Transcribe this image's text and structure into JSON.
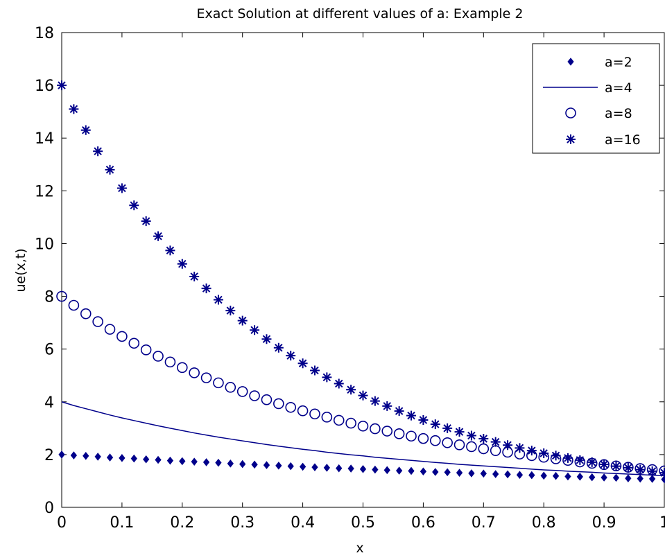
{
  "chart_data": {
    "type": "scatter",
    "title": "Exact Solution at different values of a: Example 2",
    "xlabel": "x",
    "ylabel": "ue(x,t)",
    "xlim": [
      0,
      1
    ],
    "ylim": [
      0,
      18
    ],
    "xticks": [
      "0",
      "0.1",
      "0.2",
      "0.3",
      "0.4",
      "0.5",
      "0.6",
      "0.7",
      "0.8",
      "0.9",
      "1"
    ],
    "yticks": [
      "0",
      "2",
      "4",
      "6",
      "8",
      "10",
      "12",
      "14",
      "16",
      "18"
    ],
    "grid": false,
    "legend_position": "top-right",
    "color": "#00008b",
    "x": [
      0,
      0.02,
      0.04,
      0.06,
      0.08,
      0.1,
      0.12,
      0.14,
      0.16,
      0.18,
      0.2,
      0.22,
      0.24,
      0.26,
      0.28,
      0.3,
      0.32,
      0.34,
      0.36,
      0.38,
      0.4,
      0.42,
      0.44,
      0.46,
      0.48,
      0.5,
      0.52,
      0.54,
      0.56,
      0.58,
      0.6,
      0.62,
      0.64,
      0.66,
      0.68,
      0.7,
      0.72,
      0.74,
      0.76,
      0.78,
      0.8,
      0.82,
      0.84,
      0.86,
      0.88,
      0.9,
      0.92,
      0.94,
      0.96,
      0.98,
      1
    ],
    "series": [
      {
        "name": "a=2",
        "marker": "dot",
        "values": [
          2.0,
          1.97,
          1.95,
          1.92,
          1.89,
          1.87,
          1.85,
          1.82,
          1.8,
          1.77,
          1.75,
          1.73,
          1.71,
          1.69,
          1.66,
          1.64,
          1.62,
          1.6,
          1.58,
          1.56,
          1.54,
          1.52,
          1.5,
          1.48,
          1.47,
          1.45,
          1.43,
          1.41,
          1.39,
          1.38,
          1.36,
          1.34,
          1.33,
          1.31,
          1.29,
          1.28,
          1.26,
          1.25,
          1.23,
          1.22,
          1.2,
          1.19,
          1.17,
          1.16,
          1.14,
          1.13,
          1.12,
          1.1,
          1.09,
          1.08,
          1.06
        ]
      },
      {
        "name": "a=4",
        "marker": "line",
        "values": [
          4.0,
          3.86,
          3.74,
          3.62,
          3.5,
          3.39,
          3.29,
          3.19,
          3.09,
          3.0,
          2.91,
          2.82,
          2.74,
          2.66,
          2.59,
          2.52,
          2.45,
          2.38,
          2.32,
          2.26,
          2.2,
          2.15,
          2.09,
          2.04,
          1.99,
          1.95,
          1.9,
          1.86,
          1.82,
          1.78,
          1.74,
          1.7,
          1.67,
          1.63,
          1.6,
          1.57,
          1.54,
          1.51,
          1.48,
          1.45,
          1.42,
          1.4,
          1.37,
          1.35,
          1.33,
          1.3,
          1.28,
          1.26,
          1.24,
          1.22,
          1.2
        ]
      },
      {
        "name": "a=8",
        "marker": "circle",
        "values": [
          8.0,
          7.66,
          7.34,
          7.04,
          6.75,
          6.48,
          6.22,
          5.97,
          5.73,
          5.51,
          5.3,
          5.1,
          4.91,
          4.72,
          4.55,
          4.39,
          4.23,
          4.08,
          3.93,
          3.79,
          3.66,
          3.54,
          3.42,
          3.3,
          3.19,
          3.08,
          2.98,
          2.89,
          2.79,
          2.7,
          2.61,
          2.53,
          2.45,
          2.37,
          2.3,
          2.22,
          2.15,
          2.09,
          2.02,
          1.96,
          1.9,
          1.84,
          1.78,
          1.72,
          1.67,
          1.62,
          1.57,
          1.52,
          1.47,
          1.43,
          1.38
        ]
      },
      {
        "name": "a=16",
        "marker": "star",
        "values": [
          16.0,
          15.1,
          14.3,
          13.5,
          12.8,
          12.1,
          11.45,
          10.85,
          10.28,
          9.74,
          9.23,
          8.75,
          8.3,
          7.87,
          7.46,
          7.08,
          6.72,
          6.38,
          6.05,
          5.75,
          5.46,
          5.19,
          4.93,
          4.69,
          4.46,
          4.24,
          4.03,
          3.84,
          3.65,
          3.48,
          3.31,
          3.15,
          3.0,
          2.86,
          2.72,
          2.6,
          2.48,
          2.36,
          2.25,
          2.15,
          2.05,
          1.96,
          1.87,
          1.79,
          1.71,
          1.63,
          1.56,
          1.5,
          1.43,
          1.37,
          1.31
        ]
      }
    ]
  }
}
